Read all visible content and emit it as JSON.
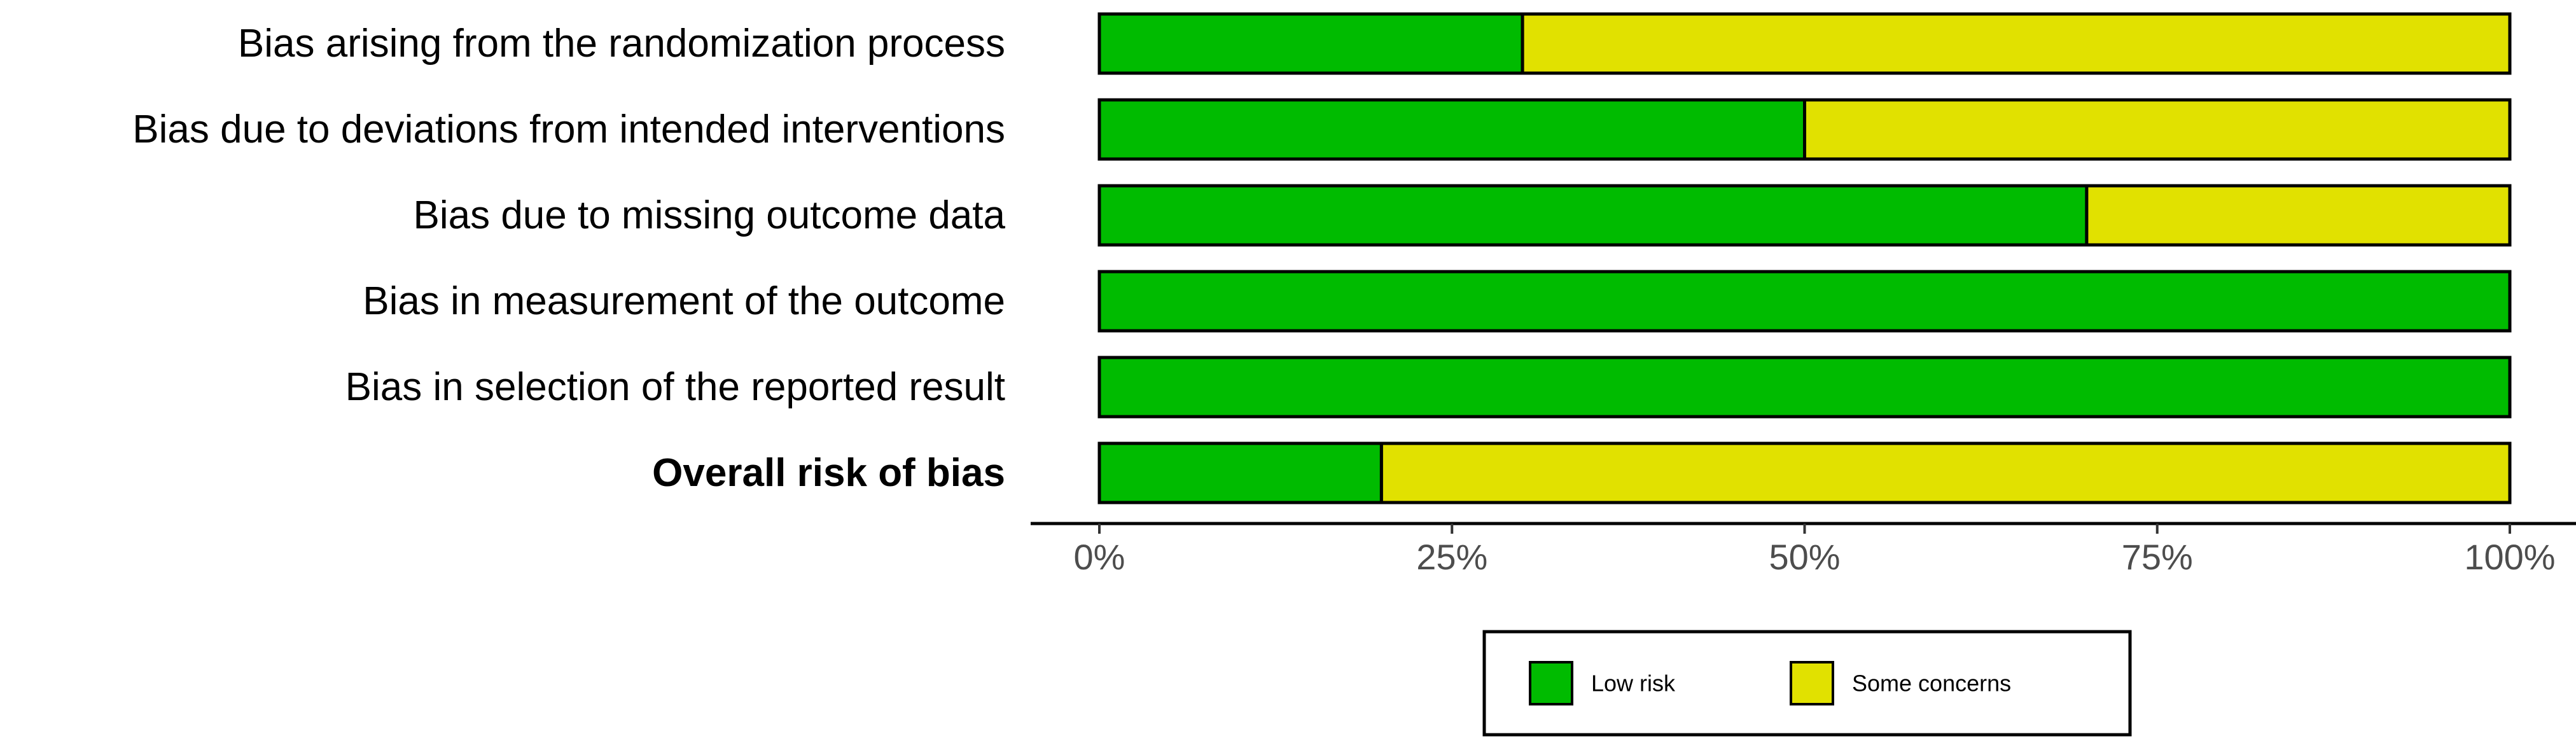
{
  "chart_data": {
    "type": "bar",
    "orientation": "horizontal",
    "stacked": true,
    "categories": [
      "Bias arising from the randomization process",
      "Bias due to deviations from intended interventions",
      "Bias due to missing outcome data",
      "Bias in measurement of the outcome",
      "Bias in selection of the reported result",
      "Overall risk of bias"
    ],
    "bold_categories": [
      "Overall risk of bias"
    ],
    "series": [
      {
        "name": "Low risk",
        "color": "#00bb00",
        "values": [
          30,
          50,
          70,
          100,
          100,
          20
        ]
      },
      {
        "name": "Some concerns",
        "color": "#e1e100",
        "values": [
          70,
          50,
          30,
          0,
          0,
          80
        ]
      }
    ],
    "x_ticks": [
      0,
      25,
      50,
      75,
      100
    ],
    "x_tick_labels": [
      "0%",
      "25%",
      "50%",
      "75%",
      "100%"
    ],
    "xlim": [
      0,
      100
    ],
    "xlabel": "",
    "ylabel": "",
    "title": "",
    "grid": false,
    "legend": {
      "position": "bottom",
      "entries": [
        "Low risk",
        "Some concerns"
      ]
    }
  }
}
